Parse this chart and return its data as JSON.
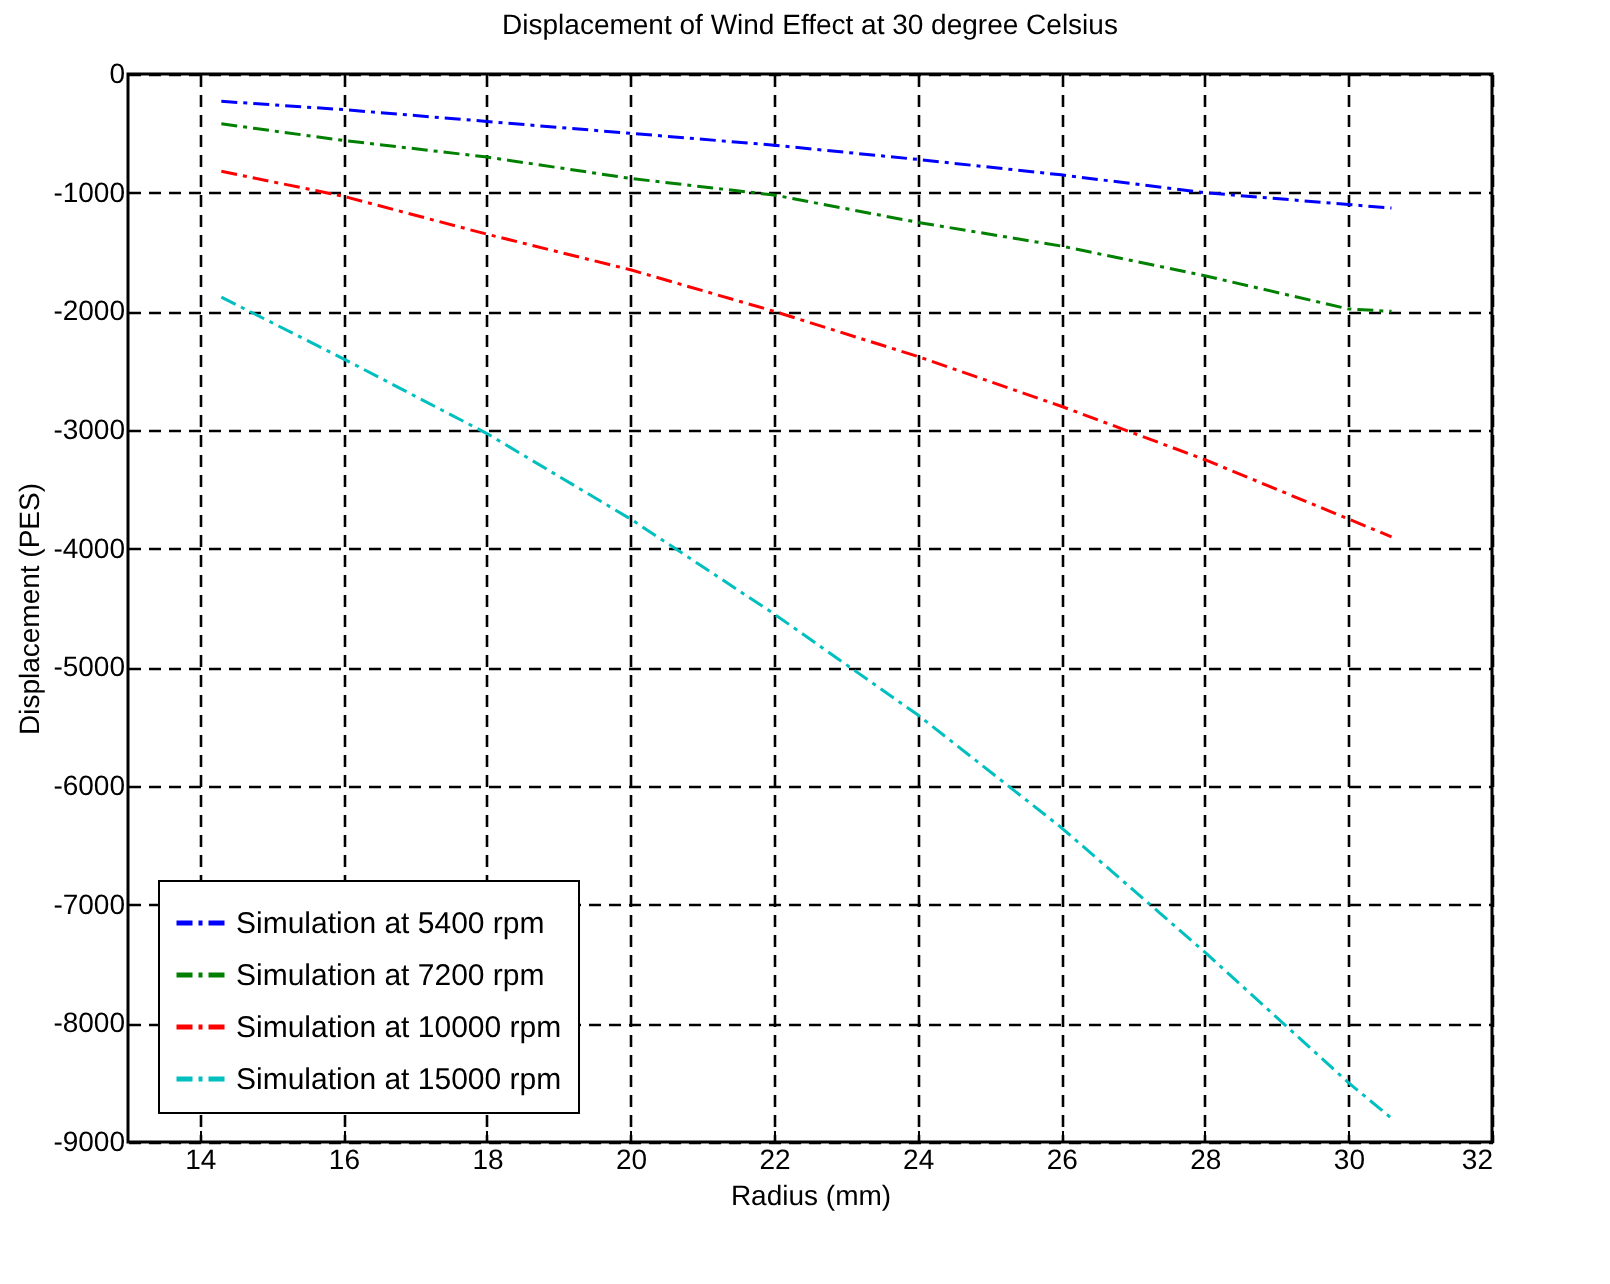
{
  "chart_data": {
    "type": "line",
    "title": "Displacement of Wind Effect at 30 degree Celsius",
    "xlabel": "Radius (mm)",
    "ylabel": "Displacement (PES)",
    "x": [
      14.3,
      16,
      18,
      20,
      22,
      24,
      26,
      28,
      30,
      30.6
    ],
    "series": [
      {
        "name": "Simulation at 5400 rpm",
        "color": "#0000ff",
        "values": [
          -230,
          -300,
          -400,
          -500,
          -600,
          -720,
          -850,
          -1000,
          -1100,
          -1130
        ]
      },
      {
        "name": "Simulation at 7200 rpm",
        "color": "#008000",
        "values": [
          -420,
          -560,
          -700,
          -880,
          -1020,
          -1250,
          -1450,
          -1700,
          -1980,
          -2000
        ]
      },
      {
        "name": "Simulation at 10000 rpm",
        "color": "#ff0000",
        "values": [
          -820,
          -1030,
          -1350,
          -1650,
          -2000,
          -2380,
          -2800,
          -3250,
          -3750,
          -3900
        ]
      },
      {
        "name": "Simulation at 15000 rpm",
        "color": "#00bfbf",
        "values": [
          -1880,
          -2400,
          -3030,
          -3750,
          -4550,
          -5400,
          -6350,
          -7400,
          -8500,
          -8800
        ]
      }
    ],
    "xlim": [
      13,
      32
    ],
    "xticks": [
      14,
      16,
      18,
      20,
      22,
      24,
      26,
      28,
      30,
      32
    ],
    "ylim": [
      -9000,
      0
    ],
    "yticks": [
      -9000,
      -8000,
      -7000,
      -6000,
      -5000,
      -4000,
      -3000,
      -2000,
      -1000,
      0
    ],
    "grid": true,
    "legend": "bottom left",
    "line_style": "dashed"
  }
}
